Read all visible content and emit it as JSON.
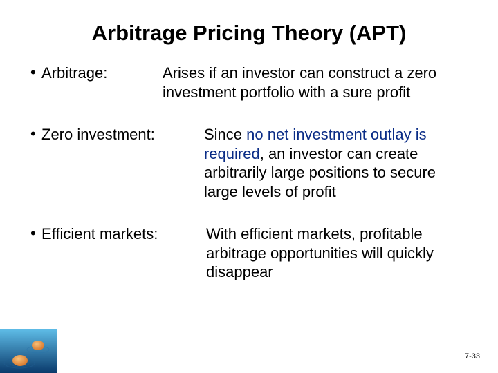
{
  "title": "Arbitrage Pricing Theory  (APT)",
  "rows": [
    {
      "term": "Arbitrage:",
      "def_plain": "Arises if an investor can construct a zero investment portfolio with a sure profit",
      "accent_html": "Arises if an investor can construct a zero investment portfolio with a sure profit"
    },
    {
      "term": "Zero investment:",
      "def_plain": "Since no net investment outlay is required, an investor can create arbitrarily large positions to secure large levels of profit",
      "accent_html": "Since <span class=\"accent\">no net investment outlay is required</span>, an investor can create arbitrarily large positions to secure large levels of profit"
    },
    {
      "term": "Efficient markets:",
      "def_plain": "With efficient markets, profitable arbitrage opportunities will quickly disappear",
      "accent_html": "With efficient markets, profitable arbitrage opportunities will quickly disappear"
    }
  ],
  "page_number": "7-33",
  "bullet_char": "•",
  "colors": {
    "text": "#000000",
    "accent": "#0a2c86",
    "background": "#ffffff"
  },
  "corner_image": {
    "name": "water-drops-image",
    "water_color_top": "#5fbde8",
    "water_color_bottom": "#0a3a6b",
    "drop_color": "#d97a2e",
    "drop_highlight": "#f6c07a"
  }
}
